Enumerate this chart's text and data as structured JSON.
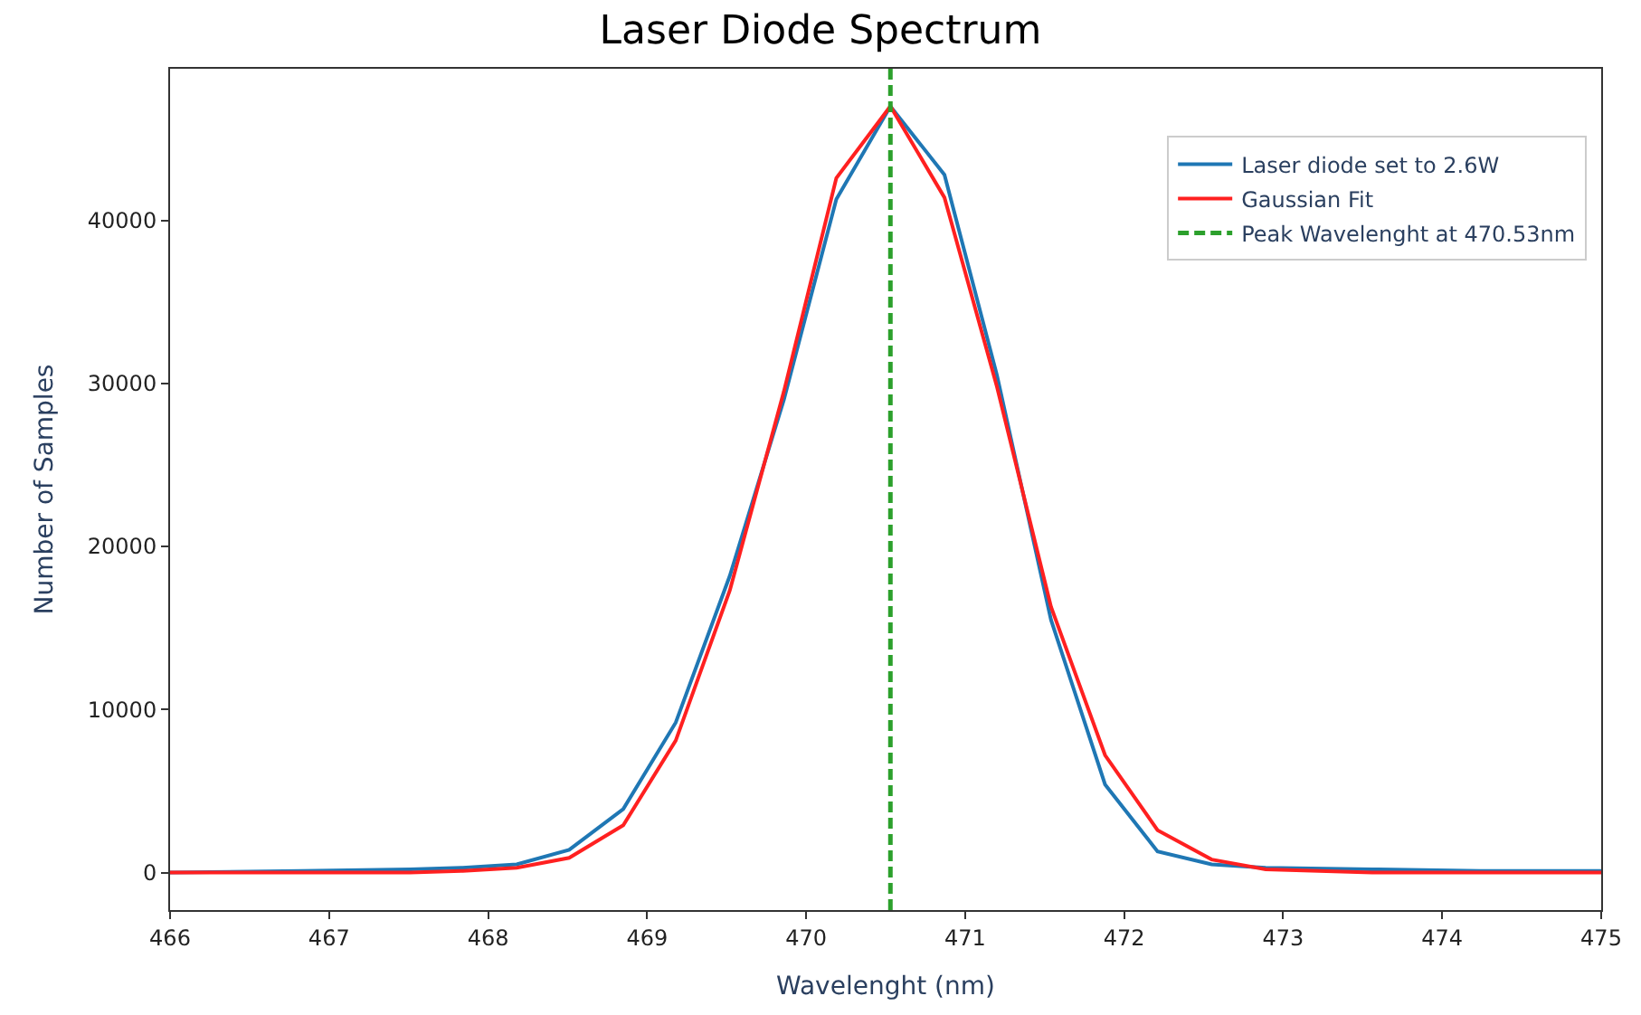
{
  "chart_data": {
    "type": "line",
    "title": "Laser Diode Spectrum",
    "xlabel": "Wavelenght (nm)",
    "ylabel": "Number of Samples",
    "xlim": [
      466,
      475
    ],
    "xticks": [
      466,
      467,
      468,
      469,
      470,
      471,
      472,
      473,
      474,
      475
    ],
    "ylim": [
      -2300,
      49300
    ],
    "yticks": [
      0,
      10000,
      20000,
      30000,
      40000
    ],
    "legend": "top right",
    "marker": "none",
    "series": [
      {
        "name": "Laser diode set to 2.6W",
        "color": "#1f77b4",
        "x": [
          466.0,
          466.83,
          467.51,
          467.84,
          468.18,
          468.51,
          468.85,
          469.18,
          469.52,
          469.86,
          470.19,
          470.53,
          470.87,
          471.2,
          471.54,
          471.88,
          472.21,
          472.55,
          472.89,
          473.56,
          474.24,
          475.0
        ],
        "values": [
          0,
          100,
          200,
          300,
          500,
          1400,
          3900,
          9200,
          18200,
          29000,
          41300,
          47000,
          42800,
          30500,
          15500,
          5400,
          1300,
          500,
          300,
          200,
          100,
          100
        ]
      },
      {
        "name": "Gaussian Fit",
        "color": "#ff2020",
        "x": [
          466.0,
          466.83,
          467.51,
          467.84,
          468.18,
          468.51,
          468.85,
          469.18,
          469.52,
          469.86,
          470.19,
          470.53,
          470.87,
          471.2,
          471.54,
          471.88,
          472.21,
          472.55,
          472.89,
          473.56,
          474.24,
          475.0
        ],
        "values": [
          0,
          0,
          0,
          100,
          300,
          900,
          2900,
          8100,
          17300,
          29500,
          42600,
          47000,
          41400,
          29800,
          16300,
          7200,
          2600,
          800,
          200,
          0,
          0,
          0
        ]
      },
      {
        "name": "Peak Wavelenght at 470.53nm",
        "color": "#2ca02c",
        "line_style": "dashed",
        "x": [
          470.53,
          470.53
        ],
        "values": [
          -2300,
          49300
        ]
      }
    ]
  }
}
